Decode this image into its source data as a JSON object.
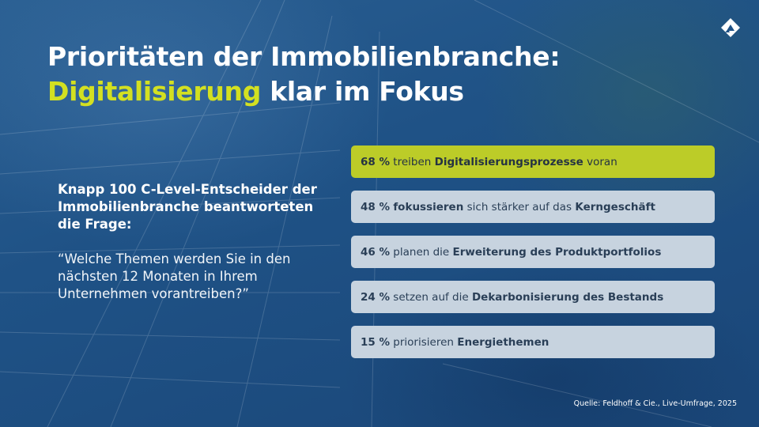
{
  "title": {
    "line1": "Prioritäten der Immobilienbranche:",
    "accent": "Digitalisierung",
    "rest": " klar im Fokus"
  },
  "intro": "Knapp 100 C-Level-Entscheider der Immobilienbranche beantworteten die Frage:",
  "question": "“Welche Themen werden Sie in den nächsten 12 Monaten in Ihrem Unternehmen vorantreiben?”",
  "bars": [
    {
      "percent": 68,
      "parts": [
        {
          "text": "68 %",
          "bold": true
        },
        {
          "text": " treiben ",
          "bold": false
        },
        {
          "text": "Digitalisierungsprozesse",
          "bold": true
        },
        {
          "text": " voran",
          "bold": false
        }
      ]
    },
    {
      "percent": 48,
      "parts": [
        {
          "text": "48 %",
          "bold": true
        },
        {
          "text": " ",
          "bold": false
        },
        {
          "text": "fokussieren",
          "bold": true
        },
        {
          "text": " sich stärker auf das ",
          "bold": false
        },
        {
          "text": "Kerngeschäft",
          "bold": true
        }
      ]
    },
    {
      "percent": 46,
      "parts": [
        {
          "text": "46 %",
          "bold": true
        },
        {
          "text": " planen die ",
          "bold": false
        },
        {
          "text": "Erweiterung des Produktportfolios",
          "bold": true
        }
      ]
    },
    {
      "percent": 24,
      "parts": [
        {
          "text": "24 %",
          "bold": true
        },
        {
          "text": " setzen auf die ",
          "bold": false
        },
        {
          "text": "Dekarbonisierung des Bestands",
          "bold": true
        }
      ]
    },
    {
      "percent": 15,
      "parts": [
        {
          "text": "15 %",
          "bold": true
        },
        {
          "text": " priorisieren ",
          "bold": false
        },
        {
          "text": "Energiethemen",
          "bold": true
        }
      ]
    }
  ],
  "source": "Quelle: Feldhoff & Cie., Live-Umfrage, 2025",
  "colors": {
    "accent": "#d3e021",
    "highlight_bar": "#bccc28",
    "bar": "#c7d3df",
    "background": "#1e4d7d"
  },
  "icons": {
    "logo": "company-logo-icon"
  }
}
